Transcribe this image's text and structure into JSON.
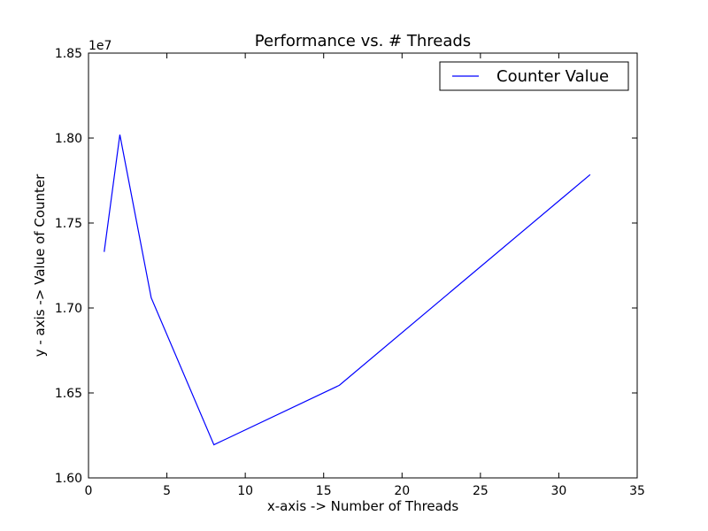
{
  "chart_data": {
    "type": "line",
    "title": "Performance vs. # Threads",
    "xlabel": "x-axis -> Number of Threads",
    "ylabel": "y - axis -> Value of Counter",
    "y_offset_label": "1e7",
    "xlim": [
      0,
      35
    ],
    "ylim": [
      16000000,
      18500000
    ],
    "x_ticks": [
      0,
      5,
      10,
      15,
      20,
      25,
      30,
      35
    ],
    "x_tick_labels": [
      "0",
      "5",
      "10",
      "15",
      "20",
      "25",
      "30",
      "35"
    ],
    "y_ticks": [
      16000000,
      16500000,
      17000000,
      17500000,
      18000000,
      18500000
    ],
    "y_tick_labels": [
      "1.60",
      "1.65",
      "1.70",
      "1.75",
      "1.80",
      "1.85"
    ],
    "grid": false,
    "legend_position": "top-right",
    "series": [
      {
        "name": "Counter Value",
        "color": "#0000ff",
        "x": [
          1,
          2,
          4,
          8,
          16,
          32
        ],
        "y": [
          17330000,
          18020000,
          17060000,
          16195000,
          16545000,
          17785000
        ]
      }
    ]
  }
}
